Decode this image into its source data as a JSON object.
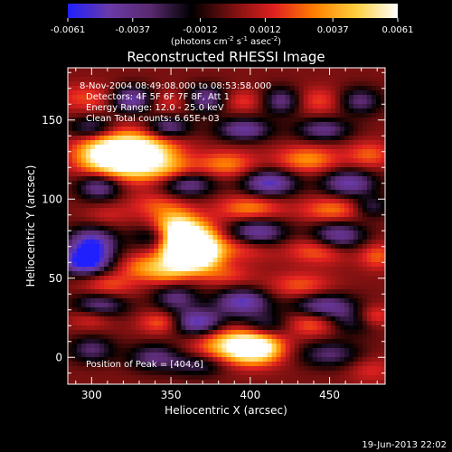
{
  "colorbar": {
    "ticks": [
      "-0.0061",
      "-0.0037",
      "-0.0012",
      "0.0012",
      "0.0037",
      "0.0061"
    ],
    "tick_values": [
      -0.0061,
      -0.0037,
      -0.0012,
      0.0012,
      0.0037,
      0.0061
    ],
    "range": [
      -0.0061,
      0.0061
    ],
    "units_label": "(photons cm",
    "units_exp1": "-2",
    "units_mid": " s",
    "units_exp2": "-1",
    "units_mid2": " asec",
    "units_exp3": "-2",
    "units_close": ")"
  },
  "chart_data": {
    "type": "heatmap",
    "title": "Reconstructed RHESSI Image",
    "xlabel": "Heliocentric X (arcsec)",
    "ylabel": "Heliocentric Y (arcsec)",
    "xlim": [
      285,
      485
    ],
    "ylim": [
      -17,
      183
    ],
    "x_ticks": [
      300,
      350,
      400,
      450
    ],
    "y_ticks": [
      0,
      50,
      100,
      150
    ],
    "x_tick_labels": [
      "300",
      "350",
      "400",
      "450"
    ],
    "y_tick_labels": [
      "0",
      "50",
      "100",
      "150"
    ],
    "colormap": [
      "#2020ff",
      "#6a3aa8",
      "#5a2a70",
      "#000000",
      "#7a1010",
      "#e02020",
      "#ff8000",
      "#ffd040",
      "#ffffff"
    ],
    "annotations": [
      "8-Nov-2004 08:49:08.000 to 08:53:58.000",
      "Detectors: 4F 5F 6F 7F 8F, Att 1",
      "Energy Range: 12.0 - 25.0 keV",
      "Clean    Total counts: 6.65E+03"
    ],
    "peak_label": "Position of Peak = [404,6]",
    "peak": [
      404,
      6
    ]
  },
  "footer": {
    "timestamp": "19-Jun-2013 22:02"
  }
}
